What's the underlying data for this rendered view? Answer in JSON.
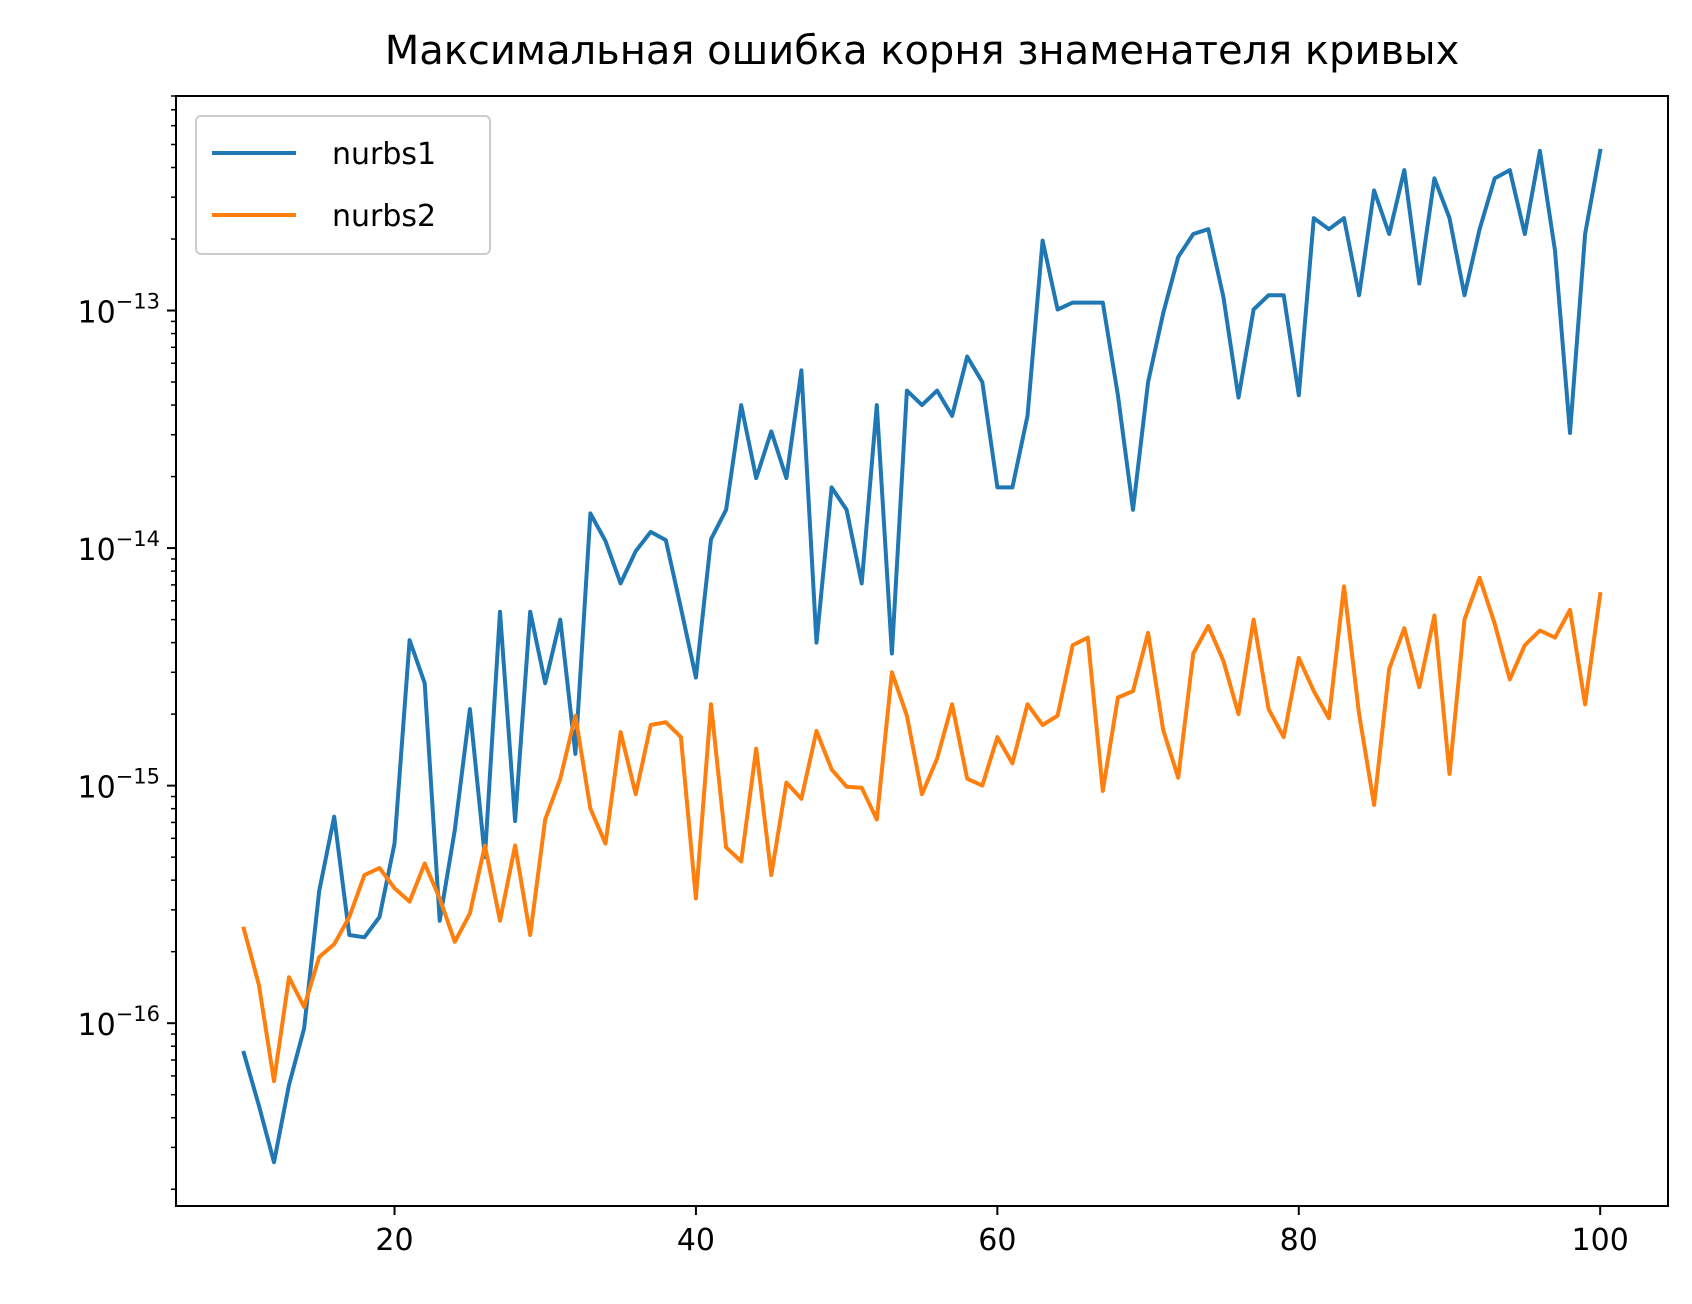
{
  "chart_data": {
    "type": "line",
    "title": "Максимальная ошибка корня знаменателя кривых",
    "xlabel": "",
    "ylabel": "",
    "yscale": "log",
    "xlim": [
      5.5,
      104.5
    ],
    "ylim": [
      1.7e-17,
      8e-13
    ],
    "xticks": [
      20,
      40,
      60,
      80,
      100
    ],
    "yticks": [
      {
        "value": 1e-16,
        "base": "10",
        "exp": "−16"
      },
      {
        "value": 1e-15,
        "base": "10",
        "exp": "−15"
      },
      {
        "value": 1e-14,
        "base": "10",
        "exp": "−14"
      },
      {
        "value": 1e-13,
        "base": "10",
        "exp": "−13"
      }
    ],
    "grid": false,
    "legend_position": "top-left",
    "x": [
      10,
      11,
      12,
      13,
      14,
      15,
      16,
      17,
      18,
      19,
      20,
      21,
      22,
      23,
      24,
      25,
      26,
      27,
      28,
      29,
      30,
      31,
      32,
      33,
      34,
      35,
      36,
      37,
      38,
      39,
      40,
      41,
      42,
      43,
      44,
      45,
      46,
      47,
      48,
      49,
      50,
      51,
      52,
      53,
      54,
      55,
      56,
      57,
      58,
      59,
      60,
      61,
      62,
      63,
      64,
      65,
      66,
      67,
      68,
      69,
      70,
      71,
      72,
      73,
      74,
      75,
      76,
      77,
      78,
      79,
      80,
      81,
      82,
      83,
      84,
      85,
      86,
      87,
      88,
      89,
      90,
      91,
      92,
      93,
      94,
      95,
      96,
      97,
      98,
      99,
      100
    ],
    "series": [
      {
        "name": "nurbs1",
        "color": "#1f77b4",
        "values": [
          7.5e-17,
          4.5e-17,
          2.6e-17,
          5.5e-17,
          9.5e-17,
          3.6e-16,
          7.4e-16,
          2.35e-16,
          2.3e-16,
          2.8e-16,
          5.7e-16,
          4.1e-15,
          2.7e-15,
          2.7e-16,
          6.5e-16,
          2.1e-15,
          5e-16,
          5.4e-15,
          7.1e-16,
          5.4e-15,
          2.7e-15,
          5e-15,
          1.36e-15,
          1.4e-14,
          1.07e-14,
          7.1e-15,
          9.7e-15,
          1.17e-14,
          1.08e-14,
          5.6e-15,
          2.85e-15,
          1.09e-14,
          1.45e-14,
          4e-14,
          1.97e-14,
          3.1e-14,
          1.97e-14,
          5.6e-14,
          4e-15,
          1.8e-14,
          1.45e-14,
          7.1e-15,
          4e-14,
          3.6e-15,
          4.6e-14,
          4e-14,
          4.6e-14,
          3.6e-14,
          6.4e-14,
          5e-14,
          1.8e-14,
          1.8e-14,
          3.6e-14,
          1.97e-13,
          1.01e-13,
          1.08e-13,
          1.08e-13,
          1.08e-13,
          4.4e-14,
          1.45e-14,
          5e-14,
          9.7e-14,
          1.68e-13,
          2.1e-13,
          2.2e-13,
          1.14e-13,
          4.3e-14,
          1.01e-13,
          1.16e-13,
          1.16e-13,
          4.4e-14,
          2.45e-13,
          2.2e-13,
          2.45e-13,
          1.16e-13,
          3.2e-13,
          2.1e-13,
          3.9e-13,
          1.3e-13,
          3.6e-13,
          2.45e-13,
          1.16e-13,
          2.2e-13,
          3.6e-13,
          3.9e-13,
          2.1e-13,
          4.7e-13,
          1.79e-13,
          3.05e-14,
          2.1e-13,
          4.7e-13
        ]
      },
      {
        "name": "nurbs2",
        "color": "#ff7f0e",
        "values": [
          2.5e-16,
          1.45e-16,
          5.7e-17,
          1.56e-16,
          1.17e-16,
          1.9e-16,
          2.15e-16,
          2.8e-16,
          4.2e-16,
          4.5e-16,
          3.7e-16,
          3.25e-16,
          4.7e-16,
          3.35e-16,
          2.2e-16,
          2.9e-16,
          5.6e-16,
          2.7e-16,
          5.6e-16,
          2.35e-16,
          7.2e-16,
          1.07e-15,
          1.97e-15,
          8e-16,
          5.7e-16,
          1.68e-15,
          9.2e-16,
          1.8e-15,
          1.85e-15,
          1.6e-15,
          3.35e-16,
          2.2e-15,
          5.5e-16,
          4.8e-16,
          1.43e-15,
          4.2e-16,
          1.03e-15,
          8.8e-16,
          1.7e-15,
          1.17e-15,
          9.9e-16,
          9.8e-16,
          7.2e-16,
          3e-15,
          1.97e-15,
          9.2e-16,
          1.3e-15,
          2.2e-15,
          1.07e-15,
          1e-15,
          1.6e-15,
          1.24e-15,
          2.2e-15,
          1.8e-15,
          1.97e-15,
          3.9e-15,
          4.2e-15,
          9.5e-16,
          2.35e-15,
          2.5e-15,
          4.4e-15,
          1.72e-15,
          1.08e-15,
          3.6e-15,
          4.7e-15,
          3.35e-15,
          2e-15,
          5e-15,
          2.1e-15,
          1.6e-15,
          3.45e-15,
          2.5e-15,
          1.92e-15,
          6.9e-15,
          2e-15,
          8.3e-16,
          3.1e-15,
          4.6e-15,
          2.6e-15,
          5.2e-15,
          1.12e-15,
          5e-15,
          7.5e-15,
          4.8e-15,
          2.8e-15,
          3.9e-15,
          4.5e-15,
          4.2e-15,
          5.5e-15,
          2.2e-15,
          6.4e-15
        ]
      }
    ]
  }
}
